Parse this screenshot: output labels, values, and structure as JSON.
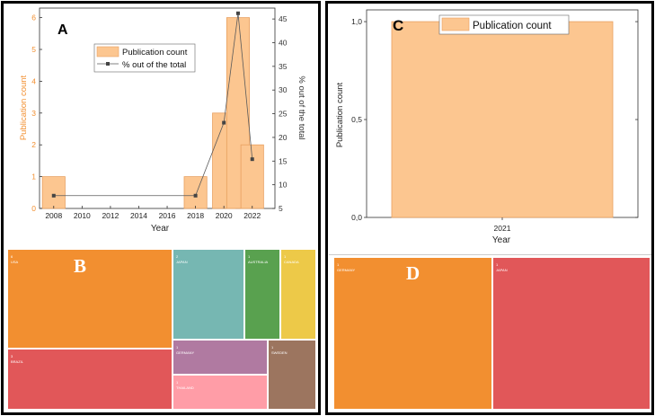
{
  "panels": {
    "a": {
      "letter": "A",
      "xlabel": "Year",
      "ylabel_left": "Publication count",
      "ylabel_right": "% out of the total",
      "legend": {
        "bar": "Publication count",
        "line": "% out of the total"
      },
      "x_ticks": [
        "2008",
        "2010",
        "2012",
        "2014",
        "2016",
        "2018",
        "2020",
        "2022"
      ],
      "y_left_ticks": [
        "0",
        "1",
        "2",
        "3",
        "4",
        "5",
        "6"
      ],
      "y_right_ticks": [
        "5",
        "10",
        "15",
        "20",
        "25",
        "30",
        "35",
        "40",
        "45"
      ]
    },
    "b": {
      "letter": "B",
      "cells": [
        {
          "label": "USA",
          "count": "6",
          "color": "#F28F30"
        },
        {
          "label": "BRAZIL",
          "count": "3",
          "color": "#E15759"
        },
        {
          "label": "JAPAN",
          "count": "2",
          "color": "#76B7B2"
        },
        {
          "label": "AUSTRALIA",
          "count": "1",
          "color": "#59A14F"
        },
        {
          "label": "CANADA",
          "count": "1",
          "color": "#EDC948"
        },
        {
          "label": "GERMANY",
          "count": "1",
          "color": "#B07AA1"
        },
        {
          "label": "SWEDEN",
          "count": "1",
          "color": "#9C755F"
        },
        {
          "label": "THAILAND",
          "count": "1",
          "color": "#FF9DA7"
        }
      ]
    },
    "c": {
      "letter": "C",
      "xlabel": "Year",
      "ylabel": "Publication count",
      "legend": "Publication count",
      "x_ticks": [
        "2021"
      ],
      "y_ticks": [
        "0,0",
        "0,5",
        "1,0"
      ]
    },
    "d": {
      "letter": "D",
      "cells": [
        {
          "label": "GERMANY",
          "count": "1",
          "color": "#F28F30"
        },
        {
          "label": "JAPAN",
          "count": "1",
          "color": "#E15759"
        }
      ]
    }
  },
  "chart_data": [
    {
      "type": "bar",
      "panel": "A",
      "title": "",
      "xlabel": "Year",
      "ylabel": "Publication count",
      "y2label": "% out of the total",
      "xlim": [
        2007,
        2023.6
      ],
      "ylim": [
        0,
        6.3
      ],
      "y2lim": [
        5,
        47.3
      ],
      "grid": false,
      "legend_position": "top-right",
      "series": [
        {
          "name": "Publication count",
          "type": "bar",
          "color": "#FCC690",
          "x": [
            2008,
            2018,
            2020,
            2021,
            2022
          ],
          "values": [
            1,
            1,
            3,
            6,
            2
          ]
        },
        {
          "name": "% out of the total",
          "type": "line",
          "axis": "right",
          "color": "#5a5a5a",
          "x": [
            2008,
            2018,
            2020,
            2021,
            2022
          ],
          "values": [
            7.7,
            7.7,
            23.1,
            46.2,
            15.4
          ]
        }
      ]
    },
    {
      "type": "heatmap",
      "panel": "B",
      "title": "",
      "categories": [
        "USA",
        "BRAZIL",
        "JAPAN",
        "AUSTRALIA",
        "CANADA",
        "GERMANY",
        "SWEDEN",
        "THAILAND"
      ],
      "values": [
        6,
        3,
        2,
        1,
        1,
        1,
        1,
        1
      ]
    },
    {
      "type": "bar",
      "panel": "C",
      "title": "",
      "xlabel": "Year",
      "ylabel": "Publication count",
      "categories": [
        "2021"
      ],
      "values": [
        1
      ],
      "ylim": [
        0,
        1.06
      ],
      "grid": false,
      "legend_position": "top-center",
      "color": "#FCC690"
    },
    {
      "type": "heatmap",
      "panel": "D",
      "title": "",
      "categories": [
        "GERMANY",
        "JAPAN"
      ],
      "values": [
        1,
        1
      ]
    }
  ]
}
